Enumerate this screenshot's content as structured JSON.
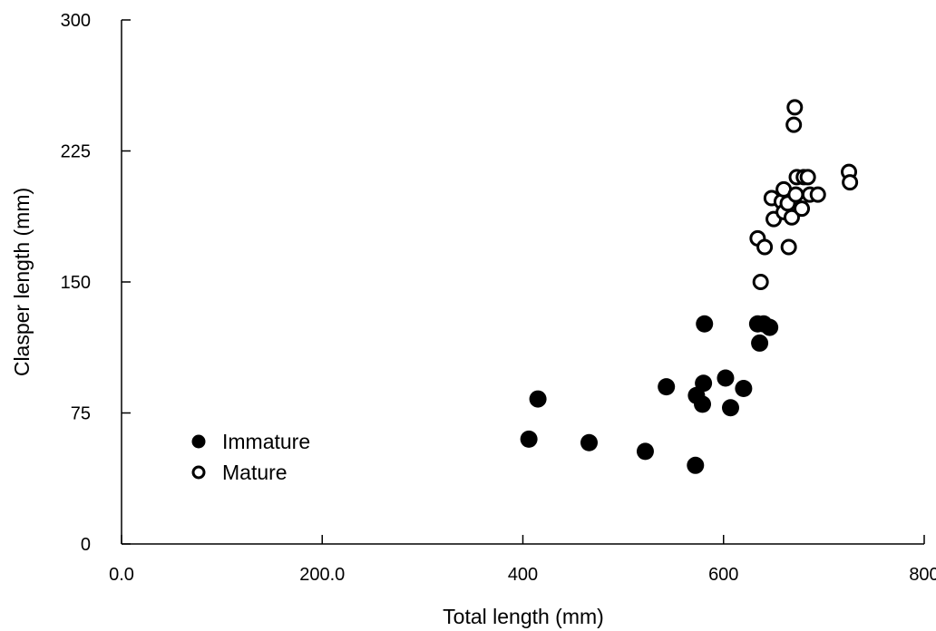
{
  "chart_data": {
    "type": "scatter",
    "title": "",
    "xlabel": "Total length (mm)",
    "ylabel": "Clasper length (mm)",
    "xlim": [
      0,
      800
    ],
    "ylim": [
      0,
      300
    ],
    "x_ticks": [
      {
        "value": 0,
        "label": "0.0"
      },
      {
        "value": 200,
        "label": "200.0"
      },
      {
        "value": 400,
        "label": "400"
      },
      {
        "value": 600,
        "label": "600"
      },
      {
        "value": 800,
        "label": "800"
      }
    ],
    "y_ticks": [
      {
        "value": 0,
        "label": "0"
      },
      {
        "value": 75,
        "label": "75"
      },
      {
        "value": 150,
        "label": "150"
      },
      {
        "value": 225,
        "label": "225"
      },
      {
        "value": 300,
        "label": "300"
      }
    ],
    "grid": false,
    "legend_position": "bottom-left",
    "series": [
      {
        "name": "Immature",
        "marker": "filled-circle",
        "color": "#000000",
        "points": [
          [
            406,
            60
          ],
          [
            415,
            83
          ],
          [
            466,
            58
          ],
          [
            522,
            53
          ],
          [
            543,
            90
          ],
          [
            572,
            45
          ],
          [
            573,
            85
          ],
          [
            579,
            80
          ],
          [
            580,
            92
          ],
          [
            581,
            126
          ],
          [
            602,
            95
          ],
          [
            607,
            78
          ],
          [
            620,
            89
          ],
          [
            634,
            126
          ],
          [
            636,
            115
          ],
          [
            640,
            126
          ],
          [
            646,
            124
          ]
        ]
      },
      {
        "name": "Mature",
        "marker": "open-circle",
        "color": "#000000",
        "points": [
          [
            634,
            175
          ],
          [
            637,
            150
          ],
          [
            641,
            170
          ],
          [
            648,
            198
          ],
          [
            650,
            186
          ],
          [
            658,
            196
          ],
          [
            660,
            203
          ],
          [
            660,
            190
          ],
          [
            664,
            195
          ],
          [
            665,
            170
          ],
          [
            668,
            187
          ],
          [
            670,
            240
          ],
          [
            671,
            250
          ],
          [
            672,
            200
          ],
          [
            673,
            210
          ],
          [
            678,
            192
          ],
          [
            680,
            210
          ],
          [
            684,
            210
          ],
          [
            686,
            200
          ],
          [
            694,
            200
          ],
          [
            725,
            213
          ],
          [
            726,
            207
          ]
        ]
      }
    ]
  }
}
